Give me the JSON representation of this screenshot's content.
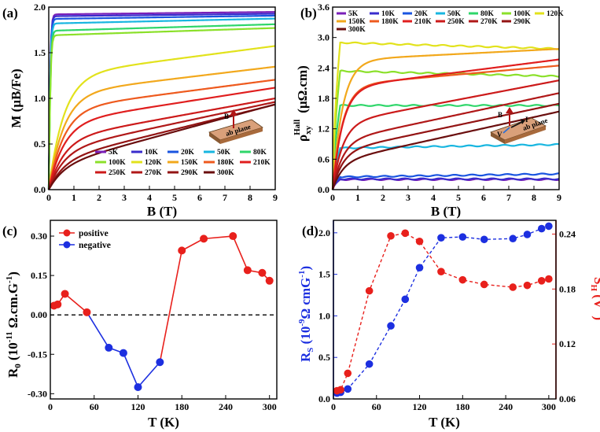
{
  "chart_data": [
    {
      "panel": "(a)",
      "type": "line",
      "xlabel": "B (T)",
      "ylabel": "M (μB/Fe)",
      "xlim": [
        0,
        9
      ],
      "ylim": [
        0,
        2.0
      ],
      "xticks": [
        "0",
        "1",
        "2",
        "3",
        "4",
        "5",
        "6",
        "7",
        "8",
        "9"
      ],
      "yticks": [
        "0.0",
        "0.5",
        "1.0",
        "1.5",
        "2.0"
      ],
      "inset": {
        "field_label": "B",
        "plane_label": "ab plane"
      },
      "series": [
        {
          "name": "5K",
          "color": "#7a1fb8",
          "sat": 1.92,
          "slope": 0.003,
          "bsat": 0.55,
          "shape": "sharp"
        },
        {
          "name": "10K",
          "color": "#3a2ccc",
          "sat": 1.9,
          "slope": 0.003,
          "bsat": 0.55,
          "shape": "sharp"
        },
        {
          "name": "20K",
          "color": "#1a55e0",
          "sat": 1.87,
          "slope": 0.004,
          "bsat": 0.56,
          "shape": "sharp"
        },
        {
          "name": "50K",
          "color": "#18b6e0",
          "sat": 1.82,
          "slope": 0.006,
          "bsat": 0.58,
          "shape": "sharp"
        },
        {
          "name": "80K",
          "color": "#2fd66a",
          "sat": 1.74,
          "slope": 0.008,
          "bsat": 0.6,
          "shape": "sharp"
        },
        {
          "name": "100K",
          "color": "#8be02a",
          "sat": 1.69,
          "slope": 0.009,
          "bsat": 0.6,
          "shape": "sharp"
        },
        {
          "name": "120K",
          "color": "#e2e21c",
          "sat": 1.25,
          "slope": 0.036,
          "bsat": 0.6,
          "shape": "soft"
        },
        {
          "name": "150K",
          "color": "#f2a81c",
          "sat": 1.05,
          "slope": 0.033,
          "bsat": 0.6,
          "shape": "soft"
        },
        {
          "name": "180K",
          "color": "#ee5a1e",
          "sat": 0.88,
          "slope": 0.036,
          "bsat": 0.6,
          "shape": "soft"
        },
        {
          "name": "210K",
          "color": "#e01e1e",
          "sat": 0.73,
          "slope": 0.043,
          "bsat": 0.6,
          "shape": "soft"
        },
        {
          "name": "250K",
          "color": "#cc1a1a",
          "sat": 0.55,
          "slope": 0.05,
          "bsat": 0.6,
          "shape": "soft"
        },
        {
          "name": "270K",
          "color": "#b01818",
          "sat": 0.43,
          "slope": 0.059,
          "bsat": 0.6,
          "shape": "soft"
        },
        {
          "name": "290K",
          "color": "#931414",
          "sat": 0.32,
          "slope": 0.068,
          "bsat": 0.6,
          "shape": "soft"
        },
        {
          "name": "300K",
          "color": "#6a0e0e",
          "sat": 0.26,
          "slope": 0.075,
          "bsat": 0.6,
          "shape": "soft"
        }
      ]
    },
    {
      "panel": "(b)",
      "type": "line",
      "xlabel": "B (T)",
      "ylabel_main": "ρ",
      "ylabel_sub": "xy",
      "ylabel_sup": "Hall",
      "ylabel_unit": "(μΩ.cm)",
      "xlim": [
        0,
        9
      ],
      "ylim": [
        0,
        3.6
      ],
      "xticks": [
        "0",
        "1",
        "2",
        "3",
        "4",
        "5",
        "6",
        "7",
        "8",
        "9"
      ],
      "yticks": [
        "0.0",
        "0.6",
        "1.2",
        "1.8",
        "2.4",
        "3.0",
        "3.6"
      ],
      "inset": {
        "field_label": "B",
        "current_label": "I",
        "voltage_label": "V",
        "plane_label": "ab plane"
      },
      "series": [
        {
          "name": "5K",
          "color": "#7a1fb8",
          "sat": 0.2,
          "slope": 0.0,
          "bsat": 0.3,
          "shape": "flat"
        },
        {
          "name": "10K",
          "color": "#3a2ccc",
          "sat": 0.21,
          "slope": 0.0,
          "bsat": 0.3,
          "shape": "flat"
        },
        {
          "name": "20K",
          "color": "#1a55e0",
          "sat": 0.25,
          "slope": 0.007,
          "bsat": 0.3,
          "shape": "flat"
        },
        {
          "name": "50K",
          "color": "#18b6e0",
          "sat": 0.82,
          "slope": 0.008,
          "bsat": 0.3,
          "shape": "flat"
        },
        {
          "name": "80K",
          "color": "#2fd66a",
          "sat": 1.66,
          "slope": 0.0,
          "bsat": 0.3,
          "shape": "flat"
        },
        {
          "name": "100K",
          "color": "#8be02a",
          "sat": 2.34,
          "slope": -0.012,
          "bsat": 0.3,
          "shape": "flat"
        },
        {
          "name": "120K",
          "color": "#e2e21c",
          "sat": 2.9,
          "slope": -0.014,
          "bsat": 0.3,
          "shape": "flat"
        },
        {
          "name": "150K",
          "color": "#f2a81c",
          "sat": 2.55,
          "slope": 0.025,
          "bsat": 0.4,
          "shape": "softb"
        },
        {
          "name": "180K",
          "color": "#ee5a1e",
          "sat": 2.05,
          "slope": 0.044,
          "bsat": 0.4,
          "shape": "softb"
        },
        {
          "name": "210K",
          "color": "#e01e1e",
          "sat": 2.0,
          "slope": 0.063,
          "bsat": 0.4,
          "shape": "softb"
        },
        {
          "name": "250K",
          "color": "#cc1a1a",
          "sat": 1.3,
          "slope": 0.095,
          "bsat": 0.4,
          "shape": "softb"
        },
        {
          "name": "270K",
          "color": "#b01818",
          "sat": 0.95,
          "slope": 0.106,
          "bsat": 0.4,
          "shape": "softb"
        },
        {
          "name": "290K",
          "color": "#931414",
          "sat": 0.75,
          "slope": 0.105,
          "bsat": 0.4,
          "shape": "softb"
        },
        {
          "name": "300K",
          "color": "#6a0e0e",
          "sat": 0.55,
          "slope": 0.11,
          "bsat": 0.4,
          "shape": "softb"
        }
      ]
    },
    {
      "panel": "(c)",
      "type": "line",
      "xlabel": "T (K)",
      "ylabel_main": "R",
      "ylabel_sub": "0",
      "ylabel_rest": " (10",
      "ylabel_exp": "-11",
      "ylabel_unit": " Ω.cm.G",
      "ylabel_unit_exp": "-1",
      "ylabel_close": ")",
      "xlim": [
        0,
        310
      ],
      "ylim": [
        -0.32,
        0.36
      ],
      "xticks": [
        0,
        60,
        120,
        180,
        240,
        300
      ],
      "yticks": [
        -0.3,
        -0.15,
        0.0,
        0.15,
        0.3
      ],
      "ytick_labels": [
        "-0.30",
        "-0.15",
        "0.00",
        "0.15",
        "0.30"
      ],
      "zero_line": true,
      "legend": [
        {
          "label": "positive",
          "color": "#e8201c"
        },
        {
          "label": "negative",
          "color": "#1c2fe0"
        }
      ],
      "points": [
        {
          "x": 5,
          "y": 0.035,
          "sign": "positive"
        },
        {
          "x": 10,
          "y": 0.04,
          "sign": "positive"
        },
        {
          "x": 20,
          "y": 0.08,
          "sign": "positive"
        },
        {
          "x": 50,
          "y": 0.01,
          "sign": "positive"
        },
        {
          "x": 80,
          "y": -0.125,
          "sign": "negative"
        },
        {
          "x": 100,
          "y": -0.145,
          "sign": "negative"
        },
        {
          "x": 120,
          "y": -0.275,
          "sign": "negative"
        },
        {
          "x": 150,
          "y": -0.18,
          "sign": "negative"
        },
        {
          "x": 180,
          "y": 0.245,
          "sign": "positive"
        },
        {
          "x": 210,
          "y": 0.29,
          "sign": "positive"
        },
        {
          "x": 250,
          "y": 0.3,
          "sign": "positive"
        },
        {
          "x": 270,
          "y": 0.17,
          "sign": "positive"
        },
        {
          "x": 290,
          "y": 0.16,
          "sign": "positive"
        },
        {
          "x": 300,
          "y": 0.13,
          "sign": "positive"
        }
      ]
    },
    {
      "panel": "(d)",
      "type": "line",
      "xlabel": "T (K)",
      "ylabel_left_main": "R",
      "ylabel_left_sub": "S",
      "ylabel_left_rest": " (10",
      "ylabel_left_exp": "-9",
      "ylabel_left_unit": "Ω cmG",
      "ylabel_left_unit_exp": "-1",
      "ylabel_left_close": ")",
      "ylabel_right_main": "S",
      "ylabel_right_sub": "H",
      "ylabel_right_rest": " (V",
      "ylabel_right_exp": "-1",
      "ylabel_right_close": ")",
      "xlim": [
        0,
        310
      ],
      "ylim_left": [
        0,
        2.15
      ],
      "ylim_right": [
        0.06,
        0.255
      ],
      "xticks": [
        0,
        60,
        120,
        180,
        240,
        300
      ],
      "yticks_left": [
        0.0,
        0.5,
        1.0,
        1.5,
        2.0
      ],
      "ytick_labels_left": [
        "0.0",
        "0.5",
        "1.0",
        "1.5",
        "2.0"
      ],
      "yticks_right": [
        0.06,
        0.12,
        0.18,
        0.24
      ],
      "ytick_labels_right": [
        "0.06",
        "0.12",
        "0.18",
        "0.24"
      ],
      "color_left": "#1c2fe0",
      "color_right": "#e8201c",
      "series": [
        {
          "name": "R_S",
          "axis": "left",
          "color": "#1c2fe0",
          "x": [
            5,
            10,
            20,
            50,
            80,
            100,
            120,
            150,
            180,
            210,
            250,
            270,
            290,
            300
          ],
          "y": [
            0.07,
            0.08,
            0.12,
            0.42,
            0.88,
            1.2,
            1.58,
            1.94,
            1.95,
            1.92,
            1.93,
            1.98,
            2.05,
            2.08
          ]
        },
        {
          "name": "S_H",
          "axis": "right",
          "color": "#e8201c",
          "x": [
            5,
            10,
            20,
            50,
            80,
            100,
            120,
            150,
            180,
            210,
            250,
            270,
            290,
            300
          ],
          "y": [
            0.069,
            0.07,
            0.088,
            0.178,
            0.238,
            0.241,
            0.232,
            0.199,
            0.19,
            0.185,
            0.182,
            0.184,
            0.189,
            0.191
          ]
        }
      ]
    }
  ]
}
